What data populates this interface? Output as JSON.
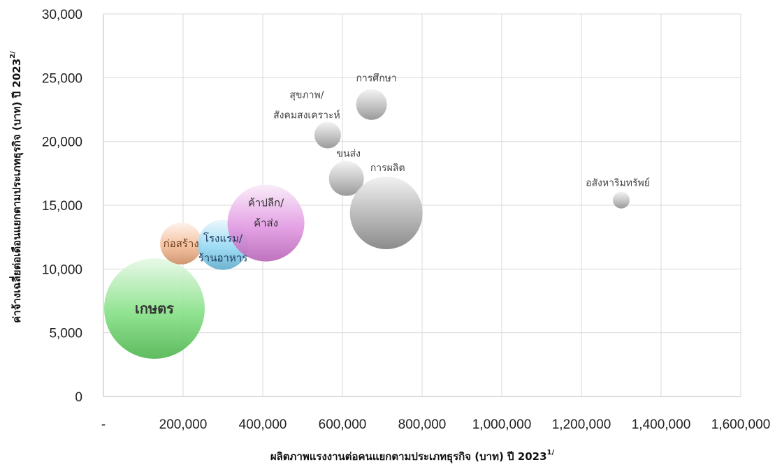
{
  "chart_data": {
    "type": "bubble",
    "title": "",
    "xlabel": "ผลิตภาพแรงงานต่อคนแยกตามประเภทธุรกิจ (บาท) ปี 2023",
    "xlabel_sup": "1/",
    "ylabel": "ค่าจ้างเฉลี่ยต่อเดือนแยกตามประเภทธุรกิจ (บาท) ปี 2023",
    "ylabel_sup": "2/",
    "xlim": [
      0,
      1600000
    ],
    "ylim": [
      0,
      30000
    ],
    "x_ticks": [
      0,
      200000,
      400000,
      600000,
      800000,
      1000000,
      1200000,
      1400000,
      1600000
    ],
    "x_tick_labels": [
      "-",
      "200,000",
      "400,000",
      "600,000",
      "800,000",
      "1,000,000",
      "1,200,000",
      "1,400,000",
      "1,600,000"
    ],
    "y_ticks": [
      0,
      5000,
      10000,
      15000,
      20000,
      25000,
      30000
    ],
    "y_tick_labels": [
      "0",
      "5,000",
      "10,000",
      "15,000",
      "20,000",
      "25,000",
      "30,000"
    ],
    "grid": true,
    "series": [
      {
        "lines": [
          "เกษตร"
        ],
        "x": 128000,
        "y": 6900,
        "size": 72,
        "color": "#5fd65f",
        "label_style": "big"
      },
      {
        "lines": [
          "ก่อสร้าง"
        ],
        "x": 195000,
        "y": 12000,
        "size": 30,
        "color": "#f0a878",
        "label_style": "mid-dark"
      },
      {
        "lines": [
          "โรงแรม/",
          "ร้านอาหาร"
        ],
        "x": 300000,
        "y": 11900,
        "size": 36,
        "color": "#74ccf0",
        "label_style": "mid-dark"
      },
      {
        "lines": [
          "ค้าปลีก/",
          "ค้าส่ง"
        ],
        "x": 408000,
        "y": 13600,
        "size": 55,
        "color": "#d87ad8",
        "label_style": "mid"
      },
      {
        "lines": [
          "สุขภาพ/",
          "สังคมสงเคราะห์"
        ],
        "x": 563000,
        "y": 20500,
        "size": 19,
        "color": "#aaaaaa",
        "label_style": "small"
      },
      {
        "lines": [
          "การศึกษา"
        ],
        "x": 673000,
        "y": 22900,
        "size": 22,
        "color": "#aaaaaa",
        "label_style": "small"
      },
      {
        "lines": [
          "ขนส่ง"
        ],
        "x": 610000,
        "y": 17100,
        "size": 25,
        "color": "#aaaaaa",
        "label_style": "small"
      },
      {
        "lines": [
          "การผลิต"
        ],
        "x": 710000,
        "y": 14400,
        "size": 52,
        "color": "#999999",
        "label_style": "small"
      },
      {
        "lines": [
          "อสังหาริมทรัพย์"
        ],
        "x": 1300000,
        "y": 15400,
        "size": 12,
        "color": "#aaaaaa",
        "label_style": "small"
      }
    ]
  }
}
